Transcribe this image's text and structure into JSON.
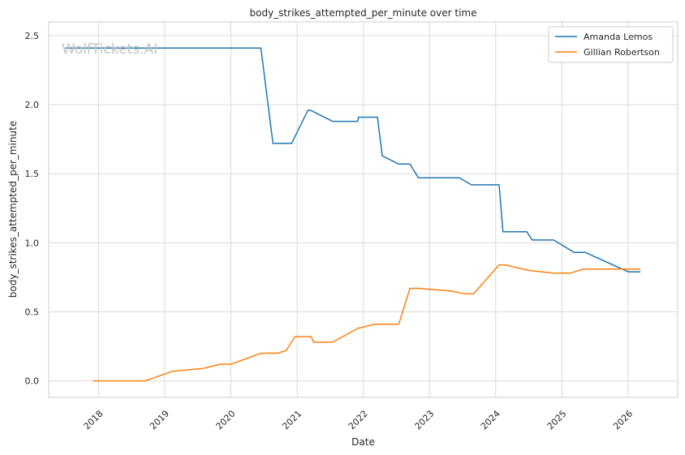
{
  "chart_data": {
    "type": "line",
    "title": "body_strikes_attempted_per_minute over time",
    "xlabel": "Date",
    "ylabel": "body_strikes_attempted_per_minute",
    "watermark": "WolfTickets.AI",
    "xlim": [
      "2017-04-01",
      "2026-10-01"
    ],
    "ylim": [
      -0.12,
      2.6
    ],
    "x_ticks": [
      "2018-01-01",
      "2019-01-01",
      "2020-01-01",
      "2021-01-01",
      "2022-01-01",
      "2023-01-01",
      "2024-01-01",
      "2025-01-01",
      "2026-01-01"
    ],
    "x_tick_labels": [
      "2018",
      "2019",
      "2020",
      "2021",
      "2022",
      "2023",
      "2024",
      "2025",
      "2026"
    ],
    "y_ticks": [
      0.0,
      0.5,
      1.0,
      1.5,
      2.0,
      2.5
    ],
    "y_tick_labels": [
      "0.0",
      "0.5",
      "1.0",
      "1.5",
      "2.0",
      "2.5"
    ],
    "grid": true,
    "legend_position": "top-right",
    "series": [
      {
        "name": "Amanda Lemos",
        "color": "#1f77b4",
        "points": [
          [
            "2017-07-01",
            2.41
          ],
          [
            "2020-06-15",
            2.41
          ],
          [
            "2020-08-20",
            1.72
          ],
          [
            "2020-12-01",
            1.72
          ],
          [
            "2021-03-01",
            1.96
          ],
          [
            "2021-03-15",
            1.96
          ],
          [
            "2021-07-15",
            1.88
          ],
          [
            "2021-12-01",
            1.88
          ],
          [
            "2021-12-05",
            1.91
          ],
          [
            "2022-03-20",
            1.91
          ],
          [
            "2022-04-15",
            1.63
          ],
          [
            "2022-07-15",
            1.57
          ],
          [
            "2022-09-15",
            1.57
          ],
          [
            "2022-11-01",
            1.47
          ],
          [
            "2023-06-15",
            1.47
          ],
          [
            "2023-08-20",
            1.42
          ],
          [
            "2024-01-20",
            1.42
          ],
          [
            "2024-02-10",
            1.08
          ],
          [
            "2024-06-20",
            1.08
          ],
          [
            "2024-07-20",
            1.02
          ],
          [
            "2024-11-15",
            1.02
          ],
          [
            "2025-03-10",
            0.93
          ],
          [
            "2025-05-10",
            0.93
          ],
          [
            "2026-01-01",
            0.79
          ],
          [
            "2026-03-10",
            0.79
          ]
        ]
      },
      {
        "name": "Gillian Robertson",
        "color": "#ff7f0e",
        "points": [
          [
            "2017-12-01",
            0.0
          ],
          [
            "2018-09-15",
            0.0
          ],
          [
            "2019-02-15",
            0.07
          ],
          [
            "2019-08-01",
            0.09
          ],
          [
            "2019-11-01",
            0.12
          ],
          [
            "2020-01-01",
            0.12
          ],
          [
            "2020-06-15",
            0.2
          ],
          [
            "2020-09-15",
            0.2
          ],
          [
            "2020-11-01",
            0.22
          ],
          [
            "2020-12-20",
            0.32
          ],
          [
            "2021-03-20",
            0.32
          ],
          [
            "2021-04-01",
            0.28
          ],
          [
            "2021-07-15",
            0.28
          ],
          [
            "2021-12-01",
            0.38
          ],
          [
            "2022-03-01",
            0.41
          ],
          [
            "2022-07-15",
            0.41
          ],
          [
            "2022-09-15",
            0.67
          ],
          [
            "2022-11-01",
            0.67
          ],
          [
            "2023-05-01",
            0.65
          ],
          [
            "2023-07-15",
            0.63
          ],
          [
            "2023-09-01",
            0.63
          ],
          [
            "2024-01-20",
            0.84
          ],
          [
            "2024-02-20",
            0.84
          ],
          [
            "2024-07-01",
            0.8
          ],
          [
            "2024-11-15",
            0.78
          ],
          [
            "2025-02-15",
            0.78
          ],
          [
            "2025-05-01",
            0.81
          ],
          [
            "2026-03-10",
            0.81
          ]
        ]
      }
    ]
  }
}
